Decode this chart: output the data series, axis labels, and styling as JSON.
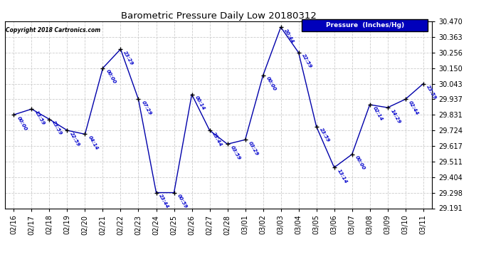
{
  "title": "Barometric Pressure Daily Low 20180312",
  "copyright": "Copyright 2018 Cartronics.com",
  "legend_label": "Pressure  (Inches/Hg)",
  "ylim": [
    29.191,
    30.47
  ],
  "yticks": [
    29.191,
    29.298,
    29.404,
    29.511,
    29.617,
    29.724,
    29.831,
    29.937,
    30.043,
    30.15,
    30.256,
    30.363,
    30.47
  ],
  "line_color": "#0000AA",
  "marker_color": "#000000",
  "bg_color": "#ffffff",
  "grid_color": "#cccccc",
  "legend_bg": "#0000BB",
  "legend_text_color": "#ffffff",
  "title_color": "#000000",
  "copyright_color": "#000000",
  "annotation_color": "#0000CC",
  "points": [
    {
      "date": "02/16",
      "time": "00:00",
      "value": 29.831
    },
    {
      "date": "02/17",
      "time": "13:59",
      "value": 29.87
    },
    {
      "date": "02/18",
      "time": "23:59",
      "value": 29.8
    },
    {
      "date": "02/19",
      "time": "22:59",
      "value": 29.724
    },
    {
      "date": "02/20",
      "time": "04:14",
      "value": 29.698
    },
    {
      "date": "02/21",
      "time": "00:00",
      "value": 30.15
    },
    {
      "date": "02/22",
      "time": "23:29",
      "value": 30.28
    },
    {
      "date": "02/23",
      "time": "07:29",
      "value": 29.937
    },
    {
      "date": "02/24",
      "time": "23:44",
      "value": 29.298
    },
    {
      "date": "02/25",
      "time": "00:59",
      "value": 29.298
    },
    {
      "date": "02/26",
      "time": "00:14",
      "value": 29.97
    },
    {
      "date": "02/27",
      "time": "23:44",
      "value": 29.724
    },
    {
      "date": "02/28",
      "time": "03:59",
      "value": 29.63
    },
    {
      "date": "03/01",
      "time": "03:29",
      "value": 29.66
    },
    {
      "date": "03/02",
      "time": "00:00",
      "value": 30.1
    },
    {
      "date": "03/03",
      "time": "20:44",
      "value": 30.43
    },
    {
      "date": "03/04",
      "time": "22:59",
      "value": 30.256
    },
    {
      "date": "03/05",
      "time": "23:59",
      "value": 29.75
    },
    {
      "date": "03/06",
      "time": "13:14",
      "value": 29.47
    },
    {
      "date": "03/07",
      "time": "00:00",
      "value": 29.56
    },
    {
      "date": "03/08",
      "time": "02:14",
      "value": 29.9
    },
    {
      "date": "03/09",
      "time": "14:29",
      "value": 29.88
    },
    {
      "date": "03/10",
      "time": "02:44",
      "value": 29.937
    },
    {
      "date": "03/11",
      "time": "23:59",
      "value": 30.043
    }
  ]
}
